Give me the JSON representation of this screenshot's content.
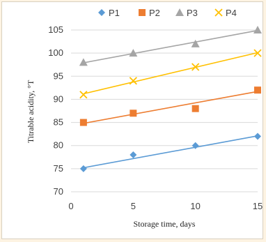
{
  "chart_data": {
    "type": "line",
    "title": "",
    "xlabel": "Storage time, days",
    "ylabel": "Titrable acidity, °T",
    "xlim": [
      0,
      15
    ],
    "ylim": [
      70,
      105
    ],
    "xticks": [
      0,
      5,
      10,
      15
    ],
    "yticks": [
      70,
      75,
      80,
      85,
      90,
      95,
      100,
      105
    ],
    "grid": true,
    "legend_position": "top",
    "series": [
      {
        "name": "P1",
        "color": "#5b9bd5",
        "marker": "diamond",
        "x": [
          1,
          5,
          10,
          15
        ],
        "values": [
          75,
          78,
          80,
          82
        ],
        "trend": [
          75.2,
          82.1
        ]
      },
      {
        "name": "P2",
        "color": "#ed7d31",
        "marker": "square",
        "x": [
          1,
          5,
          10,
          15
        ],
        "values": [
          85,
          87,
          88,
          92
        ],
        "trend": [
          84.8,
          91.7
        ]
      },
      {
        "name": "P3",
        "color": "#a5a5a5",
        "marker": "triangle",
        "x": [
          1,
          5,
          10,
          15
        ],
        "values": [
          98,
          100,
          102,
          105
        ],
        "trend": [
          97.9,
          104.9
        ]
      },
      {
        "name": "P4",
        "color": "#ffc000",
        "marker": "x",
        "x": [
          1,
          5,
          10,
          15
        ],
        "values": [
          91,
          94,
          97,
          100
        ],
        "trend": [
          91.2,
          100.1
        ]
      }
    ]
  }
}
